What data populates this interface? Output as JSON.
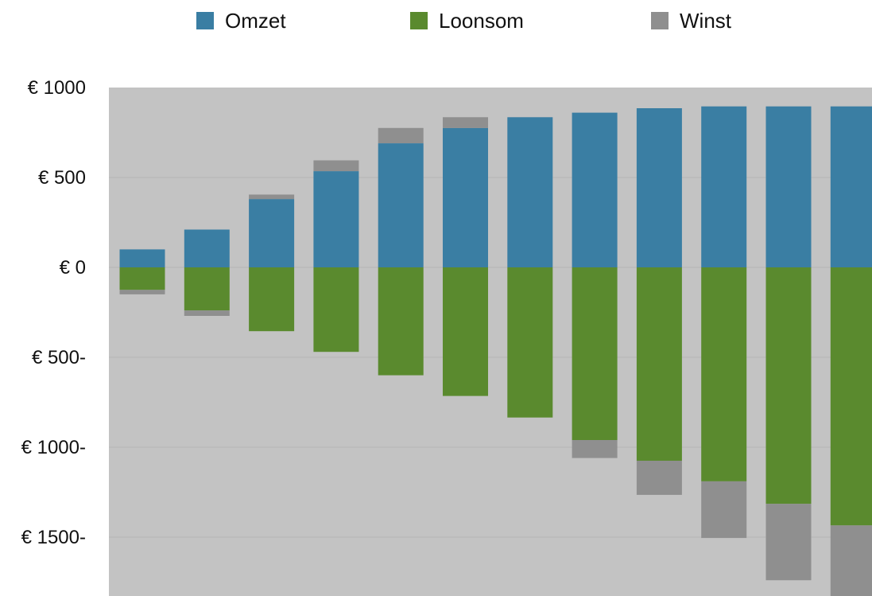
{
  "chart_data": {
    "type": "bar",
    "stacked": true,
    "categories": [
      "",
      "",
      "",
      "",
      "",
      "",
      "",
      "",
      "",
      "",
      "",
      ""
    ],
    "series": [
      {
        "name": "Omzet",
        "color": "#3a7ea3",
        "values": [
          100,
          210,
          380,
          535,
          690,
          775,
          835,
          860,
          885,
          895,
          895,
          895
        ]
      },
      {
        "name": "Loonsom",
        "color": "#5a8a2e",
        "values": [
          -125,
          -240,
          -355,
          -470,
          -600,
          -715,
          -835,
          -960,
          -1075,
          -1190,
          -1315,
          -1435
        ]
      },
      {
        "name": "Winst",
        "color": "#8f8f8f",
        "values": [
          -25,
          -30,
          25,
          60,
          85,
          60,
          0,
          -100,
          -190,
          -315,
          -425,
          -540
        ]
      }
    ],
    "yticks": [
      {
        "value": 1000,
        "label": "€ 1000"
      },
      {
        "value": 500,
        "label": "€ 500"
      },
      {
        "value": 0,
        "label": "€ 0"
      },
      {
        "value": -500,
        "label": "€ 500-"
      },
      {
        "value": -1000,
        "label": "€ 1000-"
      },
      {
        "value": -1500,
        "label": "€ 1500-"
      }
    ],
    "ylim": [
      -1800,
      1000
    ],
    "grid": true,
    "legend_position": "top",
    "title": "",
    "xlabel": "",
    "ylabel": "",
    "background_color": "#c3c3c3"
  }
}
